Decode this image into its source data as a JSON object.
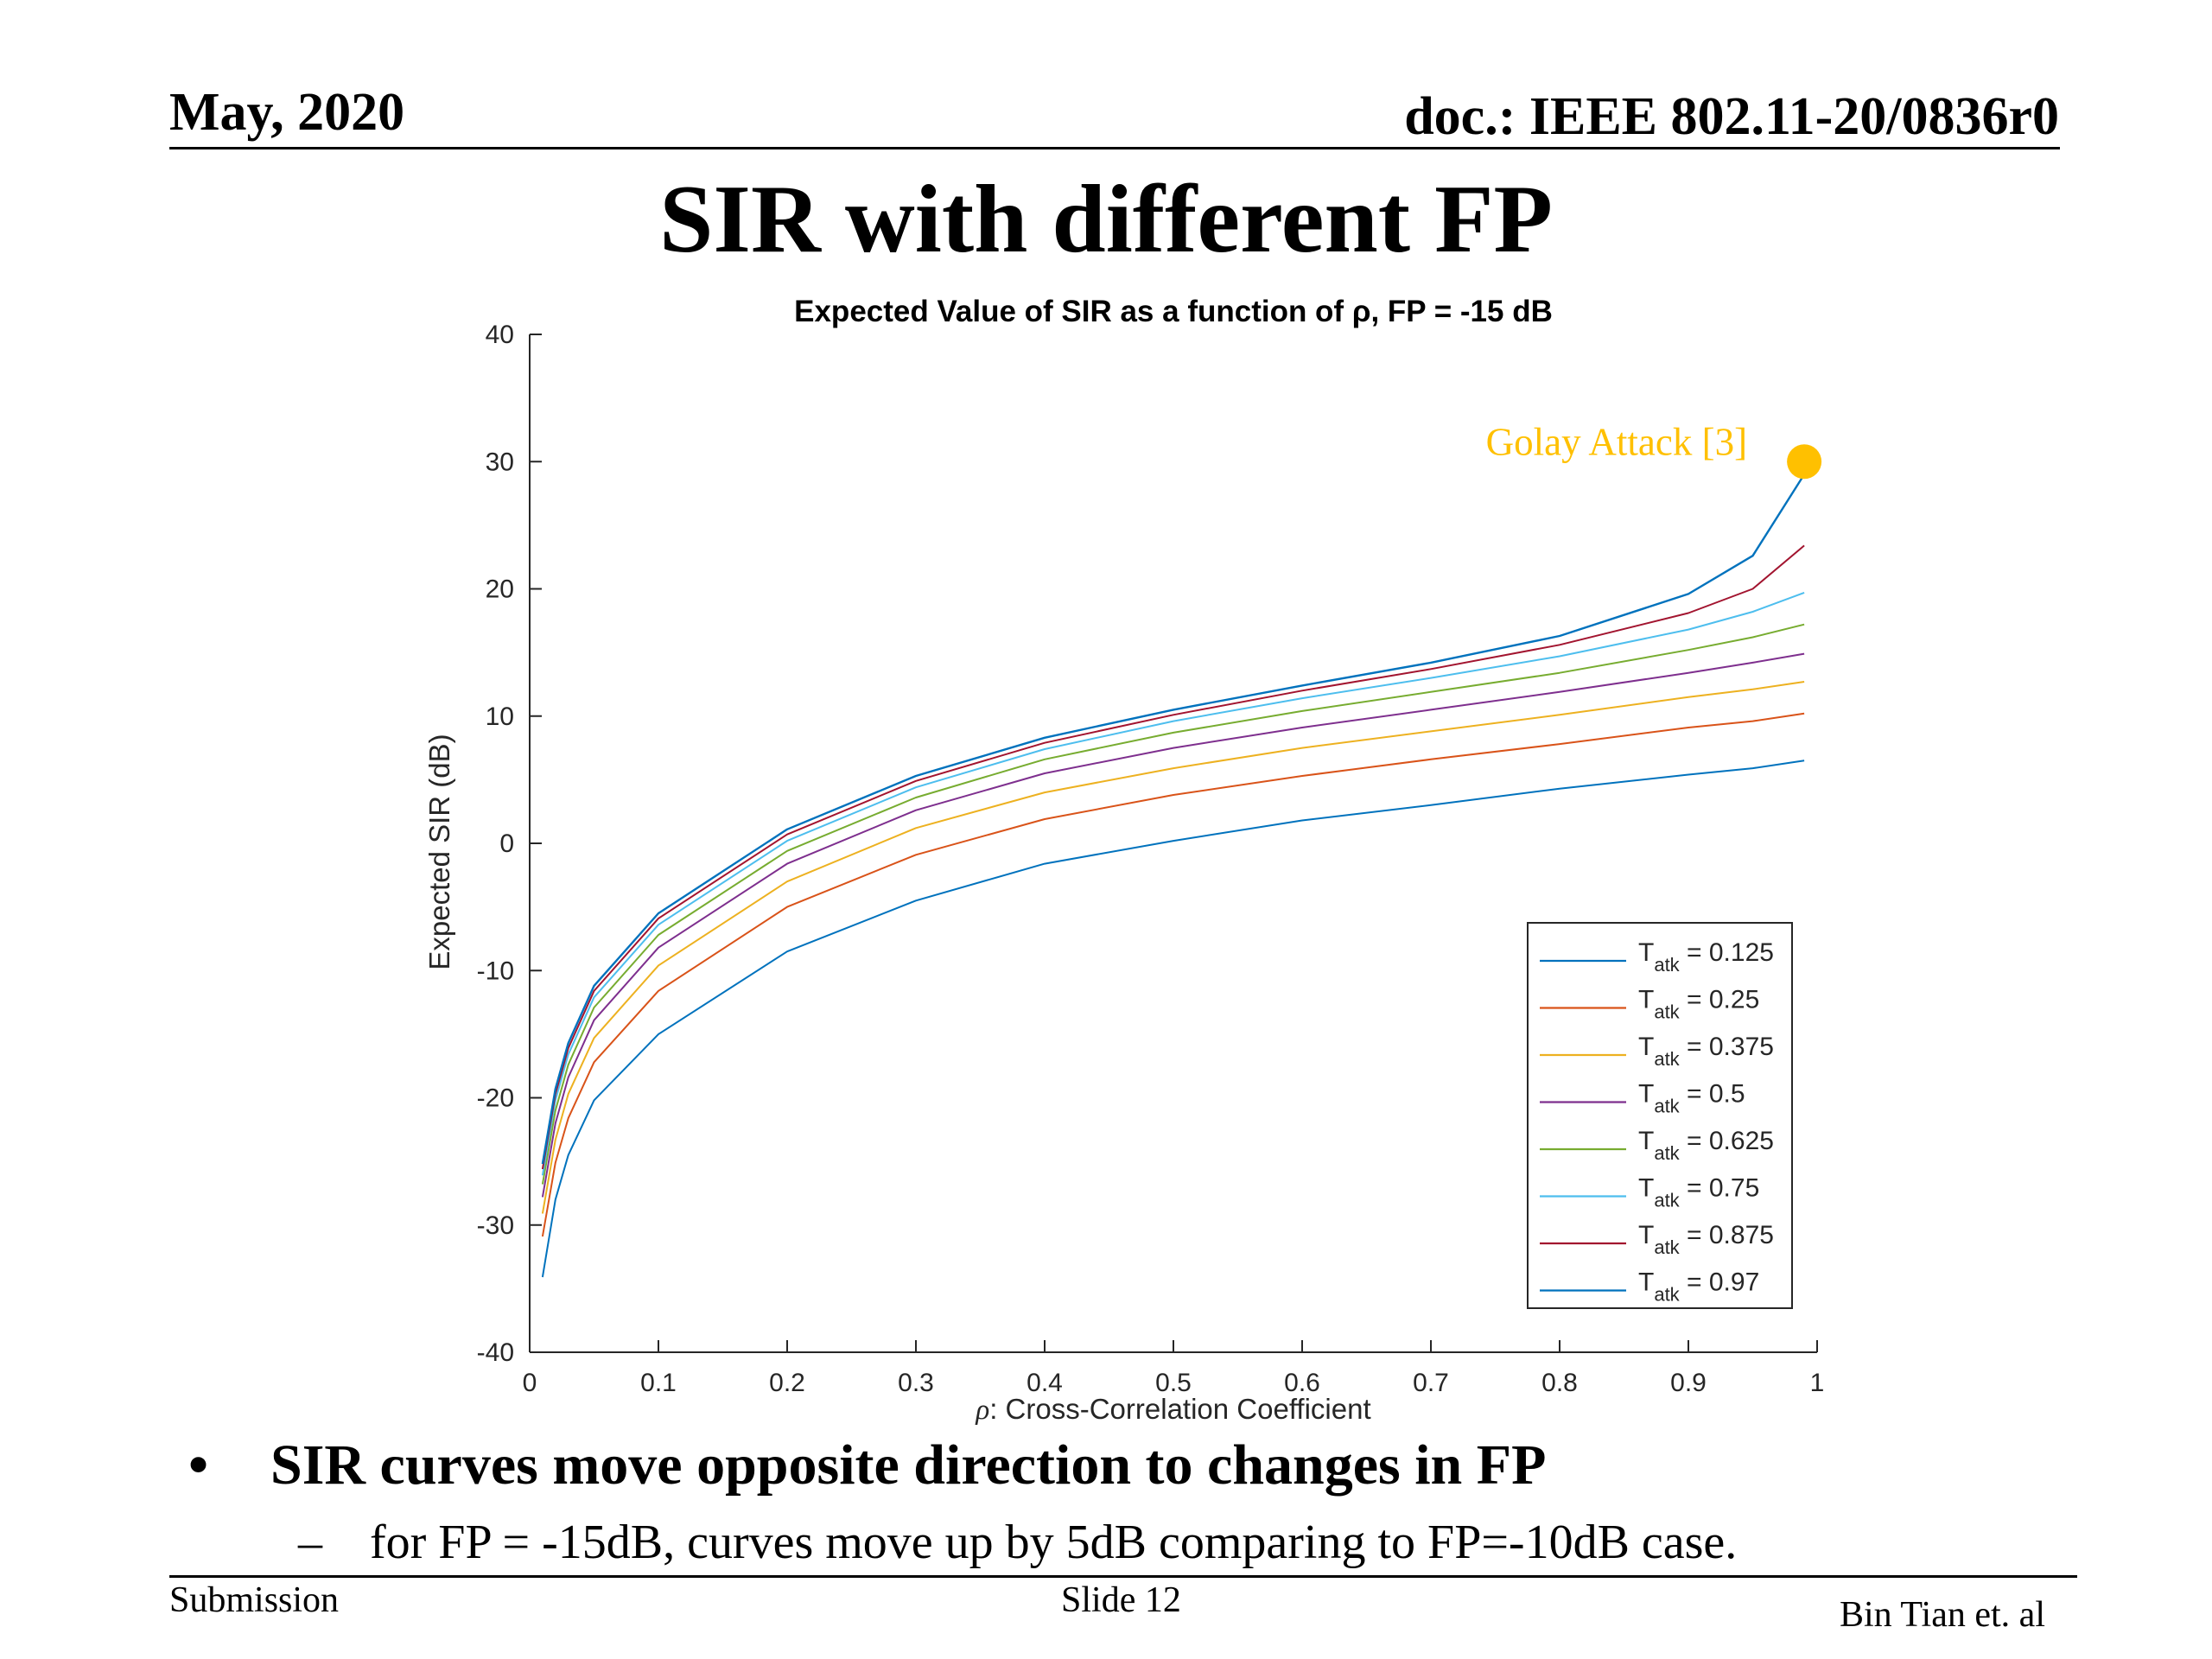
{
  "header": {
    "date": "May, 2020",
    "doc": "doc.: IEEE 802.11-20/0836r0"
  },
  "slide_title": "SIR with different FP",
  "chart_data": {
    "type": "line",
    "title": "Expected Value of SIR as a function of ρ, FP = -15 dB",
    "xlabel_symbol": "ρ",
    "xlabel_text": ": Cross-Correlation Coefficient",
    "ylabel": "Expected SIR (dB)",
    "xlim": [
      0,
      1
    ],
    "ylim": [
      -40,
      40
    ],
    "xticks": [
      "0",
      "0.1",
      "0.2",
      "0.3",
      "0.4",
      "0.5",
      "0.6",
      "0.7",
      "0.8",
      "0.9",
      "1"
    ],
    "yticks": [
      "-40",
      "-30",
      "-20",
      "-10",
      "0",
      "10",
      "20",
      "30",
      "40"
    ],
    "grid": false,
    "legend_position": "bottom-right",
    "legend_var": "T",
    "legend_sub": "atk",
    "x": [
      0.01,
      0.02,
      0.03,
      0.05,
      0.1,
      0.2,
      0.3,
      0.4,
      0.5,
      0.6,
      0.7,
      0.8,
      0.9,
      0.95,
      0.99
    ],
    "series": [
      {
        "name": "0.125",
        "color": "#0072BD",
        "values": [
          -34.1,
          -28.0,
          -24.5,
          -20.2,
          -15.0,
          -8.5,
          -4.5,
          -1.6,
          0.2,
          1.8,
          3.0,
          4.3,
          5.4,
          5.9,
          6.5
        ]
      },
      {
        "name": "0.25",
        "color": "#D95319",
        "values": [
          -30.9,
          -25.1,
          -21.6,
          -17.2,
          -11.6,
          -5.0,
          -0.9,
          1.9,
          3.8,
          5.3,
          6.6,
          7.8,
          9.1,
          9.6,
          10.2
        ]
      },
      {
        "name": "0.375",
        "color": "#EDB120",
        "values": [
          -29.1,
          -23.3,
          -19.7,
          -15.3,
          -9.6,
          -3.0,
          1.2,
          4.0,
          5.9,
          7.5,
          8.8,
          10.1,
          11.5,
          12.1,
          12.7
        ]
      },
      {
        "name": "0.5",
        "color": "#7E2F8E",
        "values": [
          -27.8,
          -22.0,
          -18.4,
          -13.9,
          -8.2,
          -1.6,
          2.6,
          5.5,
          7.5,
          9.1,
          10.5,
          11.9,
          13.4,
          14.2,
          14.9
        ]
      },
      {
        "name": "0.625",
        "color": "#77AC30",
        "values": [
          -26.8,
          -21.0,
          -17.4,
          -12.9,
          -7.2,
          -0.6,
          3.6,
          6.6,
          8.7,
          10.4,
          11.9,
          13.4,
          15.2,
          16.2,
          17.2
        ]
      },
      {
        "name": "0.75",
        "color": "#4DBEEE",
        "values": [
          -26.1,
          -20.2,
          -16.6,
          -12.1,
          -6.4,
          0.2,
          4.4,
          7.4,
          9.6,
          11.4,
          13.0,
          14.7,
          16.8,
          18.2,
          19.7
        ]
      },
      {
        "name": "0.875",
        "color": "#A2142F",
        "values": [
          -25.6,
          -19.7,
          -16.1,
          -11.6,
          -5.9,
          0.7,
          4.9,
          7.9,
          10.1,
          12.0,
          13.7,
          15.6,
          18.1,
          20.0,
          23.4
        ]
      },
      {
        "name": "0.97",
        "color": "#0072BD",
        "values": [
          -25.2,
          -19.3,
          -15.7,
          -11.2,
          -5.5,
          1.1,
          5.3,
          8.3,
          10.5,
          12.4,
          14.2,
          16.3,
          19.6,
          22.6,
          29.0
        ]
      }
    ],
    "annotation": {
      "label": "Golay Attack [3]",
      "color": "#FFC000",
      "x": 0.99,
      "y": 30
    }
  },
  "bullet": "SIR curves move opposite direction to changes in FP",
  "sub_bullet": "for FP = -15dB, curves move up by 5dB comparing to FP=-10dB case.",
  "footer": {
    "left": "Submission",
    "center": "Slide 12",
    "right": "Bin Tian et. al"
  }
}
